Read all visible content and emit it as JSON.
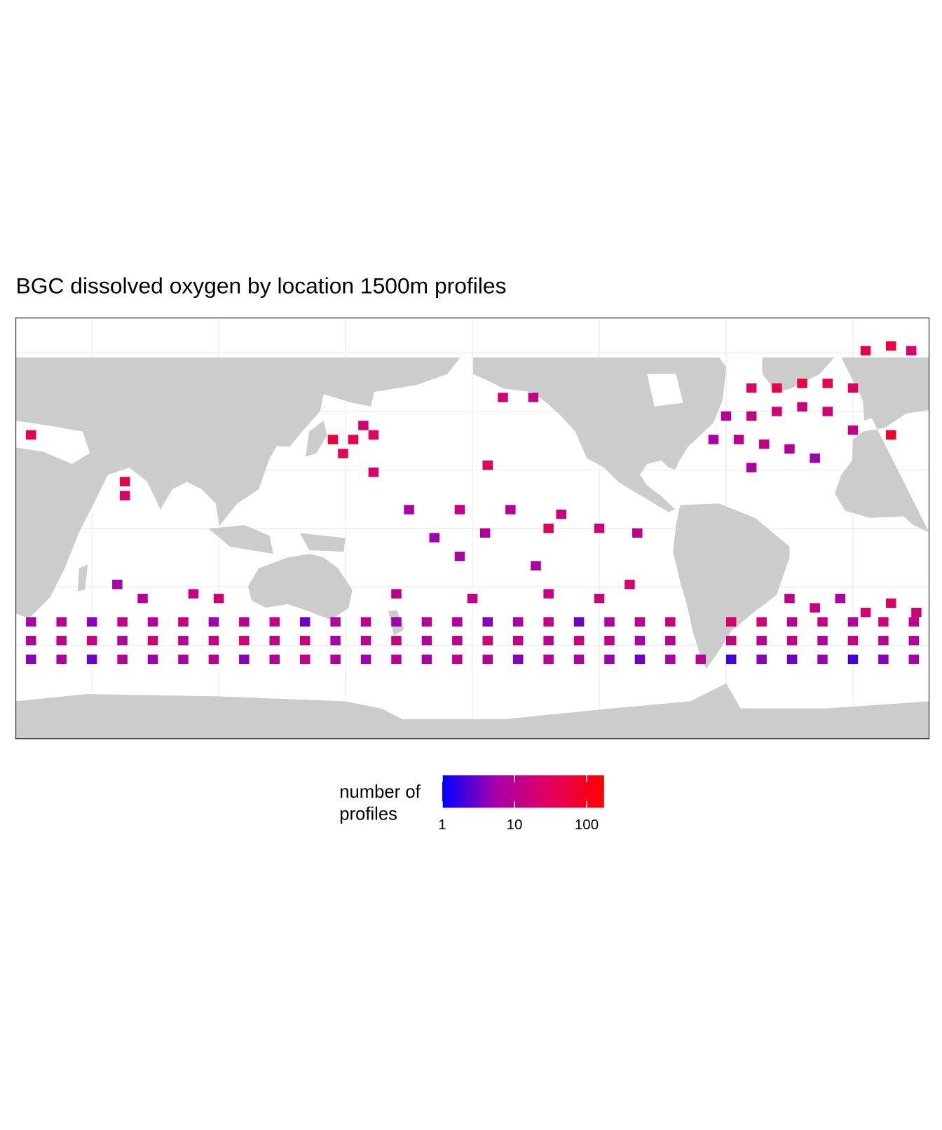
{
  "chart_data": {
    "type": "tile-map",
    "title": "BGC dissolved oxygen by location 1500m profiles",
    "legend_title": "number of profiles",
    "xlim": [
      20,
      380
    ],
    "ylim": [
      -90,
      90
    ],
    "xgrid": [
      50,
      100,
      150,
      200,
      250,
      300,
      350
    ],
    "ygrid": [
      -50,
      -25,
      0,
      25,
      50,
      75
    ],
    "log_scale": true,
    "color_limits": [
      1,
      174
    ],
    "colors": [
      "#0000ff",
      "#a700aa",
      "#e3005e",
      "#ff0000"
    ],
    "legend_breaks": [
      1,
      10,
      100
    ],
    "lon": [
      26,
      38,
      50,
      62,
      74,
      86,
      98,
      110,
      122,
      134,
      146,
      158,
      170,
      182,
      194,
      206,
      218,
      230,
      242,
      254,
      266,
      278,
      302,
      314,
      326,
      338,
      350,
      362,
      374,
      26,
      38,
      50,
      62,
      74,
      86,
      98,
      110,
      122,
      134,
      146,
      158,
      170,
      182,
      194,
      206,
      218,
      230,
      242,
      254,
      266,
      278,
      302,
      314,
      326,
      338,
      350,
      362,
      374,
      26,
      38,
      50,
      62,
      74,
      86,
      98,
      110,
      122,
      134,
      146,
      158,
      170,
      182,
      194,
      206,
      218,
      230,
      242,
      254,
      266,
      278,
      290,
      302,
      314,
      326,
      338,
      350,
      362,
      374,
      26,
      63,
      63,
      145,
      153,
      161,
      149,
      157,
      161,
      212,
      224,
      206,
      175,
      195,
      215,
      235,
      185,
      205,
      230,
      250,
      265,
      195,
      225,
      170,
      200,
      230,
      250,
      262,
      70,
      90,
      100,
      60,
      310,
      320,
      330,
      340,
      350,
      300,
      310,
      320,
      330,
      340,
      295,
      305,
      315,
      325,
      335,
      350,
      310,
      355,
      365,
      373,
      365,
      325,
      335,
      345,
      355,
      365,
      375
    ],
    "lat": [
      -40,
      -40,
      -40,
      -40,
      -40,
      -40,
      -40,
      -40,
      -40,
      -40,
      -40,
      -40,
      -40,
      -40,
      -40,
      -40,
      -40,
      -40,
      -40,
      -40,
      -40,
      -40,
      -40,
      -40,
      -40,
      -40,
      -40,
      -40,
      -40,
      -48,
      -48,
      -48,
      -48,
      -48,
      -48,
      -48,
      -48,
      -48,
      -48,
      -48,
      -48,
      -48,
      -48,
      -48,
      -48,
      -48,
      -48,
      -48,
      -48,
      -48,
      -48,
      -48,
      -48,
      -48,
      -48,
      -48,
      -48,
      -48,
      -56,
      -56,
      -56,
      -56,
      -56,
      -56,
      -56,
      -56,
      -56,
      -56,
      -56,
      -56,
      -56,
      -56,
      -56,
      -56,
      -56,
      -56,
      -56,
      -56,
      -56,
      -56,
      -56,
      -56,
      -56,
      -56,
      -56,
      -56,
      -56,
      -56,
      40,
      20,
      14,
      38,
      38,
      40,
      32,
      44,
      24,
      56,
      56,
      27,
      8,
      8,
      8,
      6,
      -4,
      -2,
      0,
      0,
      -2,
      -12,
      -16,
      -28,
      -30,
      -28,
      -30,
      -24,
      -30,
      -28,
      -30,
      -24,
      60,
      60,
      62,
      62,
      60,
      48,
      48,
      50,
      52,
      50,
      38,
      38,
      36,
      34,
      30,
      42,
      26,
      76,
      78,
      76,
      40,
      -30,
      -34,
      -30,
      -36,
      -32,
      -36
    ],
    "values": [
      6,
      9,
      4,
      12,
      8,
      15,
      5,
      10,
      14,
      3,
      7,
      11,
      5,
      9,
      8,
      4,
      6,
      12,
      3,
      7,
      9,
      14,
      22,
      18,
      10,
      13,
      7,
      16,
      11,
      8,
      11,
      14,
      7,
      18,
      9,
      13,
      20,
      12,
      16,
      6,
      10,
      15,
      8,
      11,
      19,
      13,
      9,
      17,
      12,
      6,
      10,
      14,
      9,
      12,
      7,
      15,
      10,
      8,
      4,
      7,
      3,
      9,
      5,
      6,
      10,
      4,
      8,
      12,
      7,
      5,
      9,
      6,
      11,
      8,
      4,
      10,
      7,
      5,
      3,
      6,
      9,
      2,
      4,
      3,
      5,
      2,
      4,
      6,
      40,
      40,
      25,
      60,
      45,
      30,
      35,
      20,
      25,
      20,
      12,
      30,
      6,
      12,
      9,
      15,
      5,
      8,
      35,
      18,
      10,
      7,
      6,
      10,
      12,
      14,
      16,
      25,
      8,
      12,
      20,
      6,
      30,
      45,
      60,
      40,
      25,
      8,
      12,
      20,
      15,
      18,
      6,
      10,
      14,
      9,
      5,
      12,
      6,
      40,
      55,
      30,
      80,
      10,
      14,
      8,
      20,
      25,
      18
    ]
  }
}
